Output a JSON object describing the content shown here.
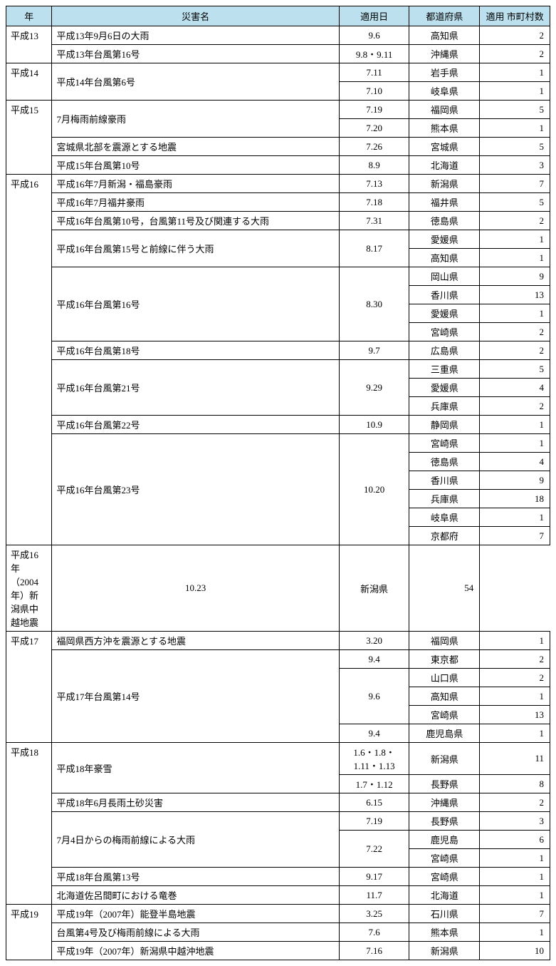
{
  "columns": [
    "年",
    "災害名",
    "適用日",
    "都道府県",
    "適用\n市町村数"
  ],
  "header_bg": "#bce0ee",
  "border_color": "#000000",
  "font_size": 13,
  "rows": [
    {
      "year": "平成13",
      "year_rowspan": 2,
      "name": "平成13年9月6日の大雨",
      "name_rowspan": 1,
      "date": "9.6",
      "date_rowspan": 1,
      "pref": "高知県",
      "count": "2"
    },
    {
      "name": "平成13年台風第16号",
      "name_rowspan": 1,
      "date": "9.8・9.11",
      "date_rowspan": 1,
      "pref": "沖縄県",
      "count": "2"
    },
    {
      "year": "平成14",
      "year_rowspan": 2,
      "name": "平成14年台風第6号",
      "name_rowspan": 2,
      "date": "7.11",
      "date_rowspan": 1,
      "pref": "岩手県",
      "count": "1"
    },
    {
      "date": "7.10",
      "date_rowspan": 1,
      "pref": "岐阜県",
      "count": "1"
    },
    {
      "year": "平成15",
      "year_rowspan": 4,
      "name": "7月梅雨前線豪雨",
      "name_rowspan": 2,
      "date": "7.19",
      "date_rowspan": 1,
      "pref": "福岡県",
      "count": "5"
    },
    {
      "date": "7.20",
      "date_rowspan": 1,
      "pref": "熊本県",
      "count": "1"
    },
    {
      "name": "宮城県北部を震源とする地震",
      "name_rowspan": 1,
      "date": "7.26",
      "date_rowspan": 1,
      "pref": "宮城県",
      "count": "5"
    },
    {
      "name": "平成15年台風第10号",
      "name_rowspan": 1,
      "date": "8.9",
      "date_rowspan": 1,
      "pref": "北海道",
      "count": "3"
    },
    {
      "year": "平成16",
      "year_rowspan": 20,
      "name": "平成16年7月新潟・福島豪雨",
      "name_rowspan": 1,
      "date": "7.13",
      "date_rowspan": 1,
      "pref": "新潟県",
      "count": "7"
    },
    {
      "name": "平成16年7月福井豪雨",
      "name_rowspan": 1,
      "date": "7.18",
      "date_rowspan": 1,
      "pref": "福井県",
      "count": "5"
    },
    {
      "name": "平成16年台風第10号，台風第11号及び関連する大雨",
      "name_rowspan": 1,
      "date": "7.31",
      "date_rowspan": 1,
      "pref": "徳島県",
      "count": "2"
    },
    {
      "name": "平成16年台風第15号と前線に伴う大雨",
      "name_rowspan": 2,
      "date": "8.17",
      "date_rowspan": 2,
      "pref": "愛媛県",
      "count": "1"
    },
    {
      "pref": "高知県",
      "count": "1"
    },
    {
      "name": "平成16年台風第16号",
      "name_rowspan": 4,
      "date": "8.30",
      "date_rowspan": 4,
      "pref": "岡山県",
      "count": "9"
    },
    {
      "pref": "香川県",
      "count": "13"
    },
    {
      "pref": "愛媛県",
      "count": "1"
    },
    {
      "pref": "宮崎県",
      "count": "2"
    },
    {
      "name": "平成16年台風第18号",
      "name_rowspan": 1,
      "date": "9.7",
      "date_rowspan": 1,
      "pref": "広島県",
      "count": "2"
    },
    {
      "name": "平成16年台風第21号",
      "name_rowspan": 3,
      "date": "9.29",
      "date_rowspan": 3,
      "pref": "三重県",
      "count": "5"
    },
    {
      "pref": "愛媛県",
      "count": "4"
    },
    {
      "pref": "兵庫県",
      "count": "2"
    },
    {
      "name": "平成16年台風第22号",
      "name_rowspan": 1,
      "date": "10.9",
      "date_rowspan": 1,
      "pref": "静岡県",
      "count": "1"
    },
    {
      "name": "平成16年台風第23号",
      "name_rowspan": 6,
      "date": "10.20",
      "date_rowspan": 6,
      "pref": "宮崎県",
      "count": "1"
    },
    {
      "pref": "徳島県",
      "count": "4"
    },
    {
      "pref": "香川県",
      "count": "9"
    },
    {
      "pref": "兵庫県",
      "count": "18"
    },
    {
      "pref": "岐阜県",
      "count": "1"
    },
    {
      "pref": "京都府",
      "count": "7"
    },
    {
      "name": "平成16年（2004年）新潟県中越地震",
      "name_rowspan": 1,
      "date": "10.23",
      "date_rowspan": 1,
      "pref": "新潟県",
      "count": "54"
    },
    {
      "year": "平成17",
      "year_rowspan": 6,
      "name": "福岡県西方沖を震源とする地震",
      "name_rowspan": 1,
      "date": "3.20",
      "date_rowspan": 1,
      "pref": "福岡県",
      "count": "1"
    },
    {
      "name": "平成17年台風第14号",
      "name_rowspan": 5,
      "date": "9.4",
      "date_rowspan": 1,
      "pref": "東京都",
      "count": "2"
    },
    {
      "date": "9.6",
      "date_rowspan": 3,
      "pref": "山口県",
      "count": "2"
    },
    {
      "pref": "高知県",
      "count": "1"
    },
    {
      "pref": "宮崎県",
      "count": "13"
    },
    {
      "date": "9.4",
      "date_rowspan": 1,
      "pref": "鹿児島県",
      "count": "1"
    },
    {
      "year": "平成18",
      "year_rowspan": 8,
      "name": "平成18年豪雪",
      "name_rowspan": 2,
      "date": "1.6・1.8・\n1.11・1.13",
      "date_rowspan": 1,
      "pref": "新潟県",
      "count": "11"
    },
    {
      "date": "1.7・1.12",
      "date_rowspan": 1,
      "pref": "長野県",
      "count": "8"
    },
    {
      "name": "平成18年6月長雨土砂災害",
      "name_rowspan": 1,
      "date": "6.15",
      "date_rowspan": 1,
      "pref": "沖縄県",
      "count": "2"
    },
    {
      "name": "7月4日からの梅雨前線による大雨",
      "name_rowspan": 3,
      "date": "7.19",
      "date_rowspan": 1,
      "pref": "長野県",
      "count": "3"
    },
    {
      "date": "7.22",
      "date_rowspan": 2,
      "pref": "鹿児島",
      "count": "6"
    },
    {
      "pref": "宮崎県",
      "count": "1"
    },
    {
      "name": "平成18年台風第13号",
      "name_rowspan": 1,
      "date": "9.17",
      "date_rowspan": 1,
      "pref": "宮崎県",
      "count": "1"
    },
    {
      "name": "北海道佐呂間町における竜巻",
      "name_rowspan": 1,
      "date": "11.7",
      "date_rowspan": 1,
      "pref": "北海道",
      "count": "1"
    },
    {
      "year": "平成19",
      "year_rowspan": 3,
      "name": "平成19年（2007年）能登半島地震",
      "name_rowspan": 1,
      "date": "3.25",
      "date_rowspan": 1,
      "pref": "石川県",
      "count": "7"
    },
    {
      "name": "台風第4号及び梅雨前線による大雨",
      "name_rowspan": 1,
      "date": "7.6",
      "date_rowspan": 1,
      "pref": "熊本県",
      "count": "1"
    },
    {
      "name": "平成19年（2007年）新潟県中越沖地震",
      "name_rowspan": 1,
      "date": "7.16",
      "date_rowspan": 1,
      "pref": "新潟県",
      "count": "10"
    }
  ]
}
